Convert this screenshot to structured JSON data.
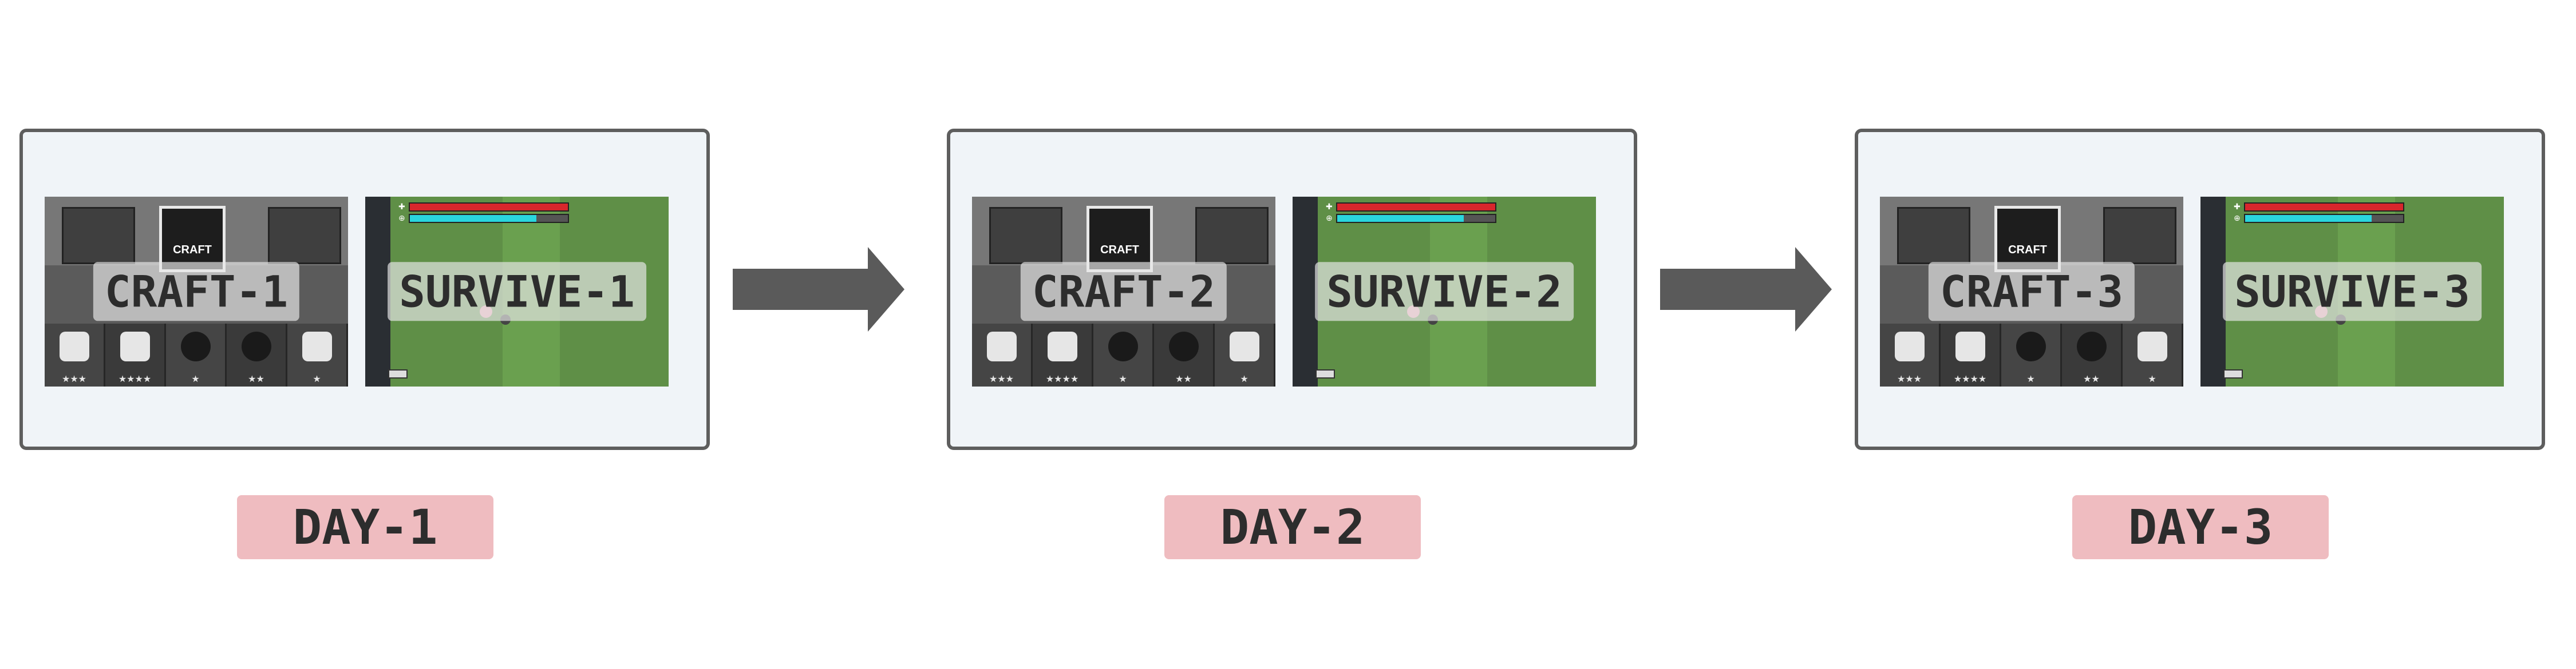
{
  "days": [
    {
      "day_label": "DAY-1",
      "craft_label": "CRAFT-1",
      "survive_label": "SURVIVE-1"
    },
    {
      "day_label": "DAY-2",
      "craft_label": "CRAFT-2",
      "survive_label": "SURVIVE-2"
    },
    {
      "day_label": "DAY-3",
      "craft_label": "CRAFT-3",
      "survive_label": "SURVIVE-3"
    }
  ],
  "craft_screen": {
    "craft_button_text": "CRAFT",
    "item_stars": [
      "★★★",
      "★★★★",
      "★",
      "★★",
      "★"
    ]
  },
  "survive_screen": {
    "health_symbol": "✚",
    "health_level": 1.0,
    "energy_level": 0.8
  },
  "colors": {
    "panel_bg": "#f0f4f8",
    "panel_border": "#5e5e5e",
    "badge_bg": "#efbcc0",
    "arrow": "#5a5a5a",
    "health": "#d8262c",
    "energy": "#2ad6de"
  },
  "icons": {
    "flow_arrow": "right-arrow-icon"
  }
}
